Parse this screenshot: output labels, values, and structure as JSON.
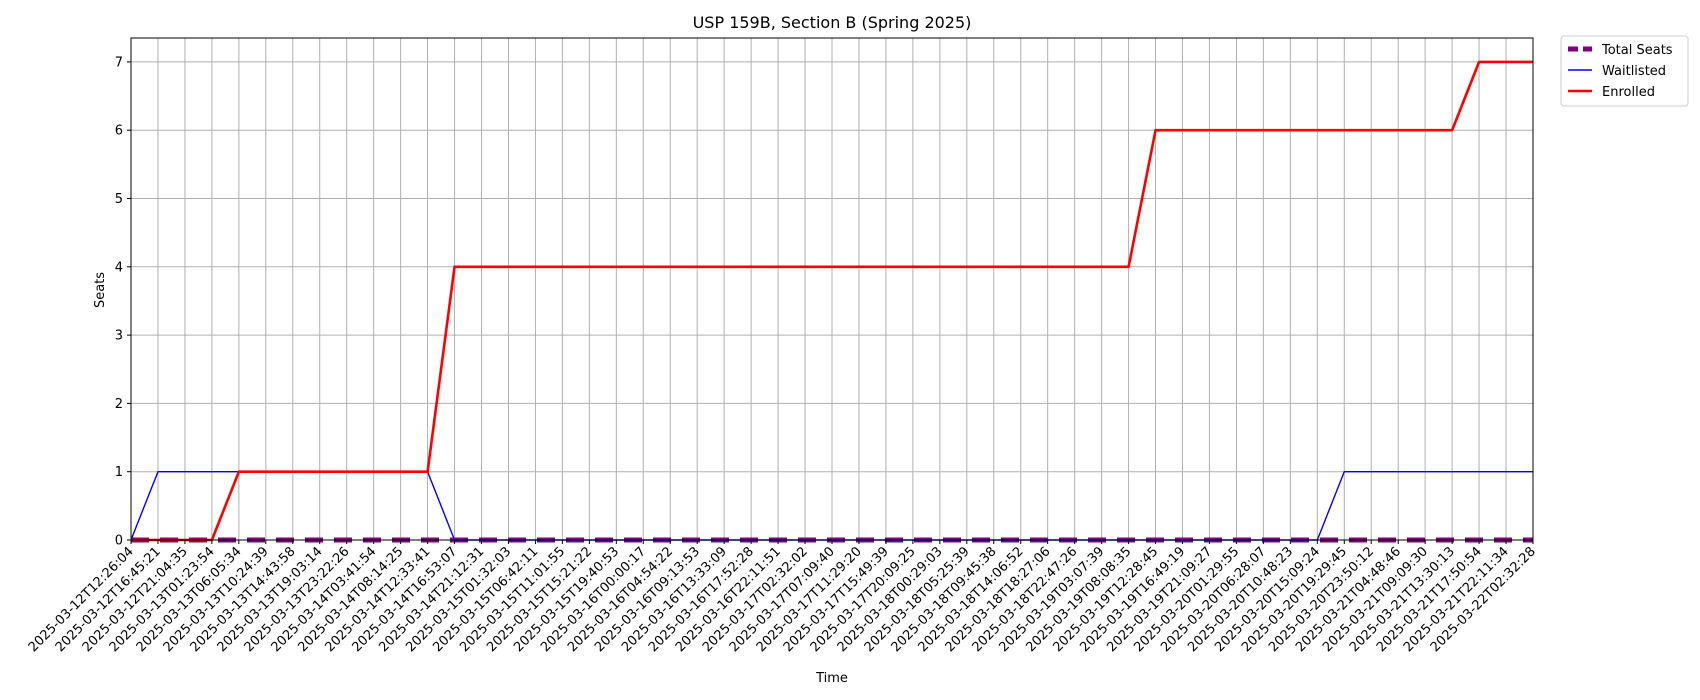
{
  "chart_data": {
    "type": "line",
    "title": "USP 159B, Section B (Spring 2025)",
    "xlabel": "Time",
    "ylabel": "Seats",
    "ylim": [
      0,
      7.35
    ],
    "yticks": [
      0,
      1,
      2,
      3,
      4,
      5,
      6,
      7
    ],
    "grid": true,
    "legend_position": "outside-top-right",
    "x": [
      "2025-03-12T12:26:04",
      "2025-03-12T16:45:21",
      "2025-03-12T21:04:35",
      "2025-03-13T01:23:54",
      "2025-03-13T06:05:34",
      "2025-03-13T10:24:39",
      "2025-03-13T14:43:58",
      "2025-03-13T19:03:14",
      "2025-03-13T23:22:26",
      "2025-03-14T03:41:54",
      "2025-03-14T08:14:25",
      "2025-03-14T12:33:41",
      "2025-03-14T16:53:07",
      "2025-03-14T21:12:31",
      "2025-03-15T01:32:03",
      "2025-03-15T06:42:11",
      "2025-03-15T11:01:55",
      "2025-03-15T15:21:22",
      "2025-03-15T19:40:53",
      "2025-03-16T00:00:17",
      "2025-03-16T04:54:22",
      "2025-03-16T09:13:53",
      "2025-03-16T13:33:09",
      "2025-03-16T17:52:28",
      "2025-03-16T22:11:51",
      "2025-03-17T02:32:02",
      "2025-03-17T07:09:40",
      "2025-03-17T11:29:20",
      "2025-03-17T15:49:39",
      "2025-03-17T20:09:25",
      "2025-03-18T00:29:03",
      "2025-03-18T05:25:39",
      "2025-03-18T09:45:38",
      "2025-03-18T14:06:52",
      "2025-03-18T18:27:06",
      "2025-03-18T22:47:26",
      "2025-03-19T03:07:39",
      "2025-03-19T08:08:35",
      "2025-03-19T12:28:45",
      "2025-03-19T16:49:19",
      "2025-03-19T21:09:27",
      "2025-03-20T01:29:55",
      "2025-03-20T06:28:07",
      "2025-03-20T10:48:23",
      "2025-03-20T15:09:24",
      "2025-03-20T19:29:45",
      "2025-03-20T23:50:12",
      "2025-03-21T04:48:46",
      "2025-03-21T09:09:30",
      "2025-03-21T13:30:13",
      "2025-03-21T17:50:54",
      "2025-03-21T22:11:34",
      "2025-03-22T02:32:28"
    ],
    "series": [
      {
        "name": "Total Seats",
        "color": "#800080",
        "style": "dashed",
        "values": [
          0,
          0,
          0,
          0,
          0,
          0,
          0,
          0,
          0,
          0,
          0,
          0,
          0,
          0,
          0,
          0,
          0,
          0,
          0,
          0,
          0,
          0,
          0,
          0,
          0,
          0,
          0,
          0,
          0,
          0,
          0,
          0,
          0,
          0,
          0,
          0,
          0,
          0,
          0,
          0,
          0,
          0,
          0,
          0,
          0,
          0,
          0,
          0,
          0,
          0,
          0,
          0,
          0
        ]
      },
      {
        "name": "Waitlisted",
        "color": "#0000ff",
        "style": "solid-thin",
        "values": [
          0,
          1,
          1,
          1,
          1,
          1,
          1,
          1,
          1,
          1,
          1,
          1,
          0,
          0,
          0,
          0,
          0,
          0,
          0,
          0,
          0,
          0,
          0,
          0,
          0,
          0,
          0,
          0,
          0,
          0,
          0,
          0,
          0,
          0,
          0,
          0,
          0,
          0,
          0,
          0,
          0,
          0,
          0,
          0,
          0,
          1,
          1,
          1,
          1,
          1,
          1,
          1,
          1
        ]
      },
      {
        "name": "Enrolled",
        "color": "#ff0000",
        "style": "solid-thick",
        "values": [
          0,
          0,
          0,
          0,
          1,
          1,
          1,
          1,
          1,
          1,
          1,
          1,
          4,
          4,
          4,
          4,
          4,
          4,
          4,
          4,
          4,
          4,
          4,
          4,
          4,
          4,
          4,
          4,
          4,
          4,
          4,
          4,
          4,
          4,
          4,
          4,
          4,
          4,
          6,
          6,
          6,
          6,
          6,
          6,
          6,
          6,
          6,
          6,
          6,
          6,
          7,
          7,
          7
        ]
      }
    ]
  }
}
